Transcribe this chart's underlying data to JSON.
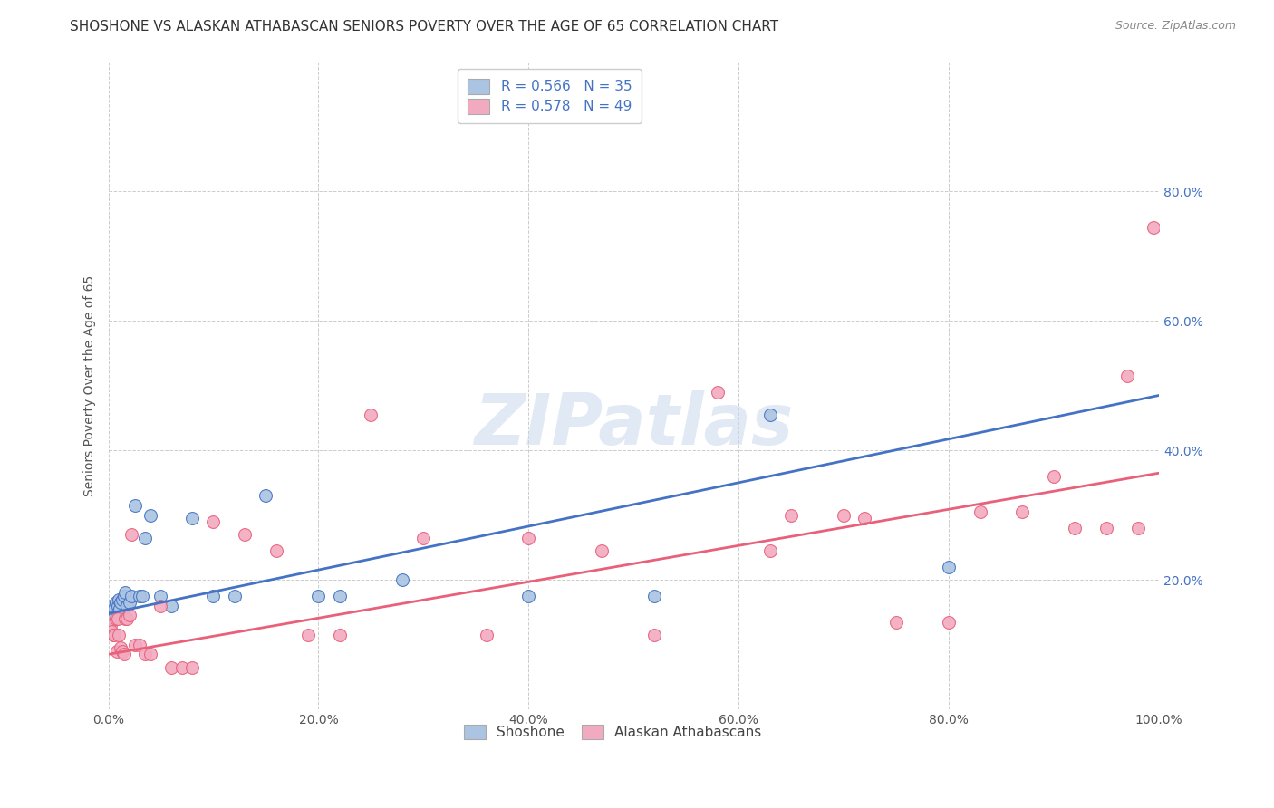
{
  "title": "SHOSHONE VS ALASKAN ATHABASCAN SENIORS POVERTY OVER THE AGE OF 65 CORRELATION CHART",
  "source": "Source: ZipAtlas.com",
  "ylabel": "Seniors Poverty Over the Age of 65",
  "shoshone_R": 0.566,
  "shoshone_N": 35,
  "athabascan_R": 0.578,
  "athabascan_N": 49,
  "shoshone_color": "#aac4e2",
  "athabascan_color": "#f2aac0",
  "shoshone_line_color": "#4472c4",
  "athabascan_line_color": "#e8607a",
  "shoshone_x": [
    0.002,
    0.003,
    0.004,
    0.005,
    0.006,
    0.007,
    0.008,
    0.009,
    0.01,
    0.011,
    0.012,
    0.013,
    0.015,
    0.016,
    0.018,
    0.02,
    0.022,
    0.025,
    0.03,
    0.032,
    0.035,
    0.04,
    0.05,
    0.06,
    0.08,
    0.1,
    0.12,
    0.15,
    0.2,
    0.22,
    0.28,
    0.4,
    0.52,
    0.63,
    0.8
  ],
  "shoshone_y": [
    0.155,
    0.16,
    0.145,
    0.14,
    0.155,
    0.165,
    0.155,
    0.16,
    0.17,
    0.155,
    0.165,
    0.17,
    0.175,
    0.18,
    0.16,
    0.165,
    0.175,
    0.315,
    0.175,
    0.175,
    0.265,
    0.3,
    0.175,
    0.16,
    0.295,
    0.175,
    0.175,
    0.33,
    0.175,
    0.175,
    0.2,
    0.175,
    0.175,
    0.455,
    0.22
  ],
  "athabascan_x": [
    0.002,
    0.003,
    0.005,
    0.006,
    0.007,
    0.008,
    0.009,
    0.01,
    0.012,
    0.013,
    0.015,
    0.016,
    0.018,
    0.02,
    0.022,
    0.025,
    0.03,
    0.035,
    0.04,
    0.05,
    0.06,
    0.07,
    0.08,
    0.1,
    0.13,
    0.16,
    0.19,
    0.22,
    0.25,
    0.3,
    0.36,
    0.4,
    0.47,
    0.52,
    0.58,
    0.63,
    0.65,
    0.7,
    0.72,
    0.75,
    0.8,
    0.83,
    0.87,
    0.9,
    0.92,
    0.95,
    0.97,
    0.98,
    0.995
  ],
  "athabascan_y": [
    0.13,
    0.12,
    0.115,
    0.115,
    0.14,
    0.09,
    0.14,
    0.115,
    0.095,
    0.09,
    0.085,
    0.14,
    0.14,
    0.145,
    0.27,
    0.1,
    0.1,
    0.085,
    0.085,
    0.16,
    0.065,
    0.065,
    0.065,
    0.29,
    0.27,
    0.245,
    0.115,
    0.115,
    0.455,
    0.265,
    0.115,
    0.265,
    0.245,
    0.115,
    0.49,
    0.245,
    0.3,
    0.3,
    0.295,
    0.135,
    0.135,
    0.305,
    0.305,
    0.36,
    0.28,
    0.28,
    0.515,
    0.28,
    0.745
  ],
  "blue_line_x0": 0.0,
  "blue_line_y0": 0.148,
  "blue_line_x1": 1.0,
  "blue_line_y1": 0.485,
  "pink_line_x0": 0.0,
  "pink_line_y0": 0.085,
  "pink_line_x1": 1.0,
  "pink_line_y1": 0.365,
  "xlim": [
    0.0,
    1.0
  ],
  "ylim": [
    0.0,
    1.0
  ],
  "xtick_vals": [
    0.0,
    0.2,
    0.4,
    0.6,
    0.8,
    1.0
  ],
  "xtick_labels": [
    "0.0%",
    "20.0%",
    "40.0%",
    "60.0%",
    "80.0%",
    "100.0%"
  ],
  "right_ytick_vals": [
    0.2,
    0.4,
    0.6,
    0.8
  ],
  "right_ytick_labels": [
    "20.0%",
    "40.0%",
    "60.0%",
    "80.0%"
  ],
  "grid_color": "#cccccc",
  "background_color": "#ffffff",
  "watermark": "ZIPatlas",
  "title_fontsize": 11,
  "source_fontsize": 9,
  "legend_fontsize": 11,
  "axis_label_fontsize": 10,
  "tick_fontsize": 10,
  "marker_size": 100,
  "line_width": 2.0
}
